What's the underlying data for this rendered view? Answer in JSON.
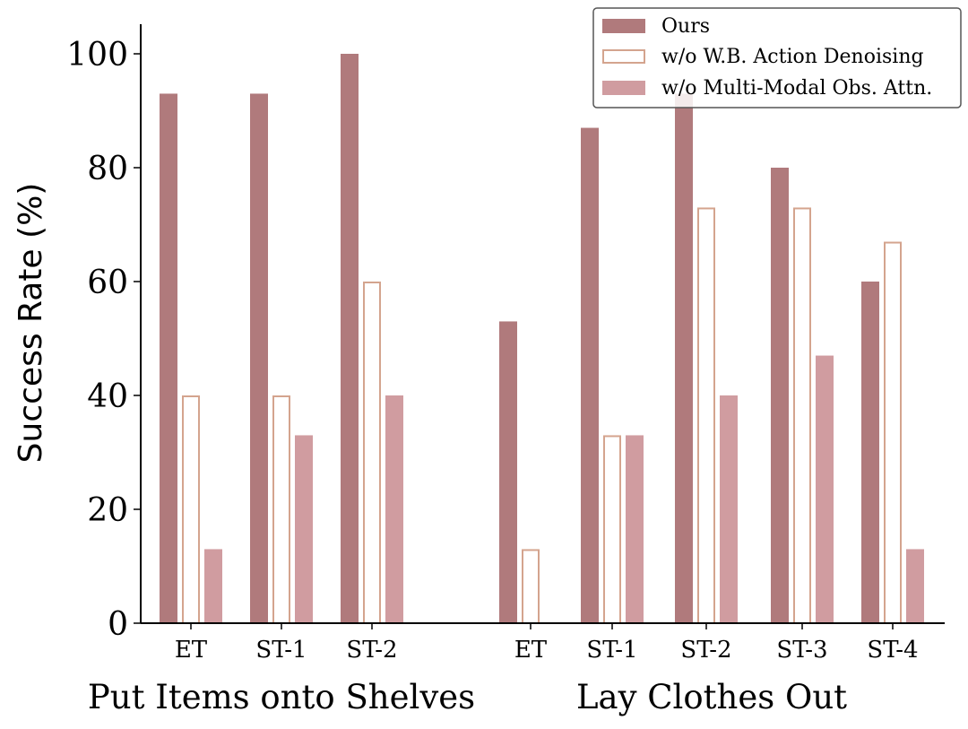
{
  "chart_data": {
    "type": "bar",
    "ylabel": "Success Rate (%)",
    "ylim": [
      0,
      105
    ],
    "yticks": [
      0,
      20,
      40,
      60,
      80,
      100
    ],
    "groups": [
      {
        "label": "Put Items onto Shelves",
        "categories": [
          "ET",
          "ST-1",
          "ST-2"
        ],
        "series": [
          {
            "name": "Ours",
            "values": [
              93,
              93,
              100
            ]
          },
          {
            "name": "w/o W.B. Action Denoising",
            "values": [
              40,
              40,
              60
            ]
          },
          {
            "name": "w/o Multi-Modal Obs. Attn.",
            "values": [
              13,
              33,
              40
            ]
          }
        ]
      },
      {
        "label": "Lay Clothes Out",
        "categories": [
          "ET",
          "ST-1",
          "ST-2",
          "ST-3",
          "ST-4"
        ],
        "series": [
          {
            "name": "Ours",
            "values": [
              53,
              87,
              93,
              80,
              60
            ]
          },
          {
            "name": "w/o W.B. Action Denoising",
            "values": [
              13,
              33,
              73,
              73,
              67
            ]
          },
          {
            "name": "w/o Multi-Modal Obs. Attn.",
            "values": [
              0,
              33,
              40,
              47,
              13
            ]
          }
        ]
      }
    ],
    "legend": {
      "placement": "top-right",
      "entries": [
        "Ours",
        "w/o W.B. Action Denoising",
        "w/o Multi-Modal Obs. Attn."
      ]
    },
    "colors": {
      "Ours": "#b07a7c",
      "w/o W.B. Action Denoising": "#ffffff",
      "w/o W.B. Action Denoising edge": "#d4a48e",
      "w/o Multi-Modal Obs. Attn.": "#d09ca0"
    },
    "grid": false
  }
}
